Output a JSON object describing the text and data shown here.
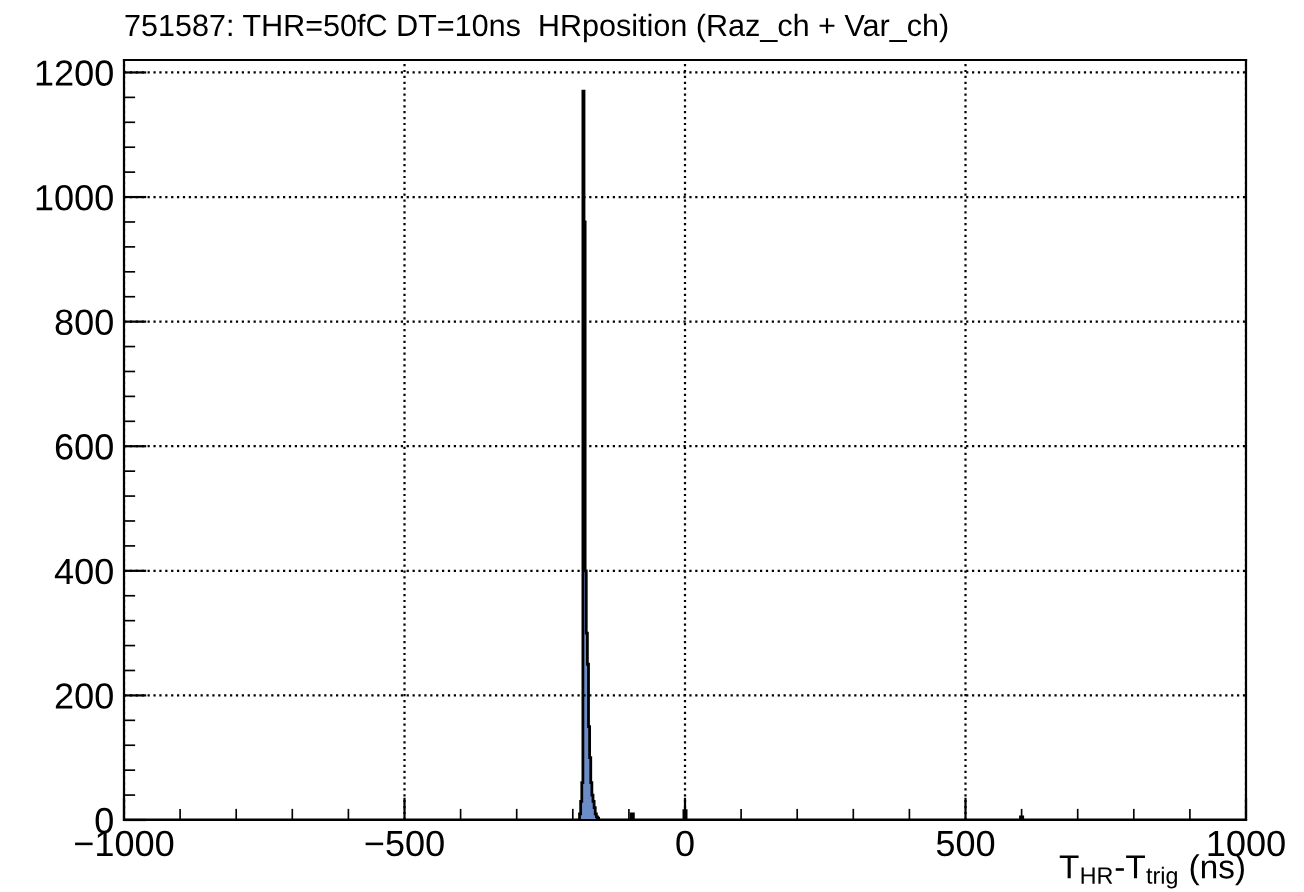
{
  "chart_data": {
    "type": "histogram",
    "title": "751587: THR=50fC DT=10ns  HRposition (Raz_ch + Var_ch)",
    "xlabel": "T$_{HR}$-T$_{trig}$ (ns)",
    "bins": [
      -1000,
      -188,
      -186,
      -184,
      -182,
      -180,
      -178,
      -176,
      -174,
      -172,
      -170,
      -168,
      -166,
      -164,
      -162,
      -160,
      -158,
      -156,
      -154,
      -150,
      -96,
      -92,
      -2,
      2,
      598,
      602,
      1000
    ],
    "values": [
      0,
      10,
      30,
      60,
      1170,
      960,
      400,
      300,
      250,
      150,
      100,
      60,
      40,
      30,
      20,
      10,
      5,
      3,
      0,
      0,
      10,
      0,
      15,
      0,
      5,
      0
    ],
    "color": "#6b8cc7",
    "xlim": [
      -1000,
      1000
    ],
    "xticks": [
      -1000,
      -500,
      0,
      500,
      1000
    ],
    "ylim": [
      0,
      1220
    ],
    "yticks": [
      0,
      200,
      400,
      600,
      800,
      1000,
      1200
    ],
    "grid": true
  }
}
